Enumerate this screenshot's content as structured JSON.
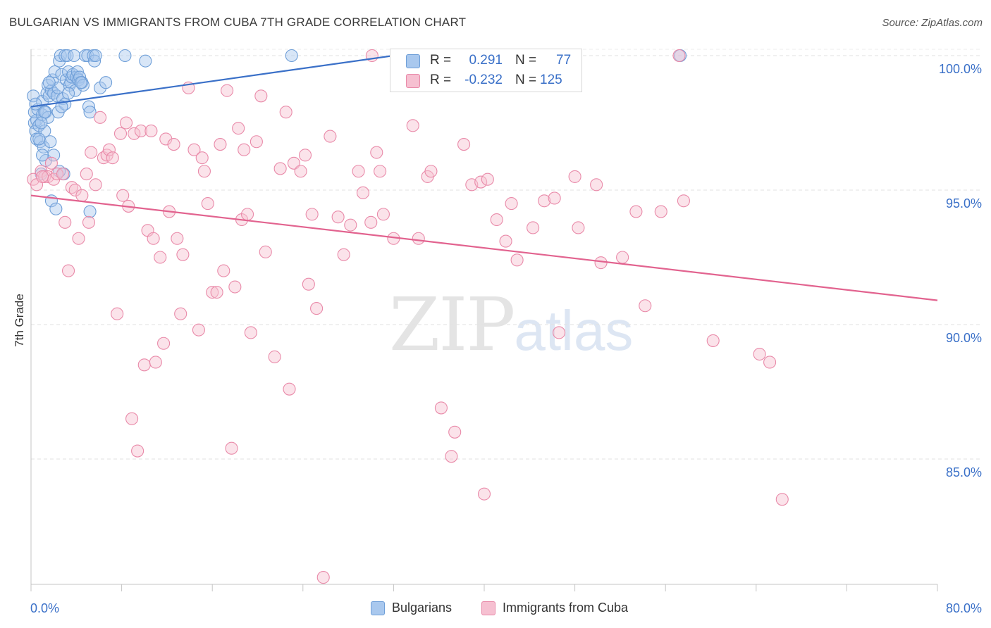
{
  "title": "BULGARIAN VS IMMIGRANTS FROM CUBA 7TH GRADE CORRELATION CHART",
  "source": "Source: ZipAtlas.com",
  "watermark": {
    "zip": "ZIP",
    "atlas": "atlas"
  },
  "legend_top": [
    {
      "r_label": "R =",
      "r_value": "0.291",
      "n_label": "N =",
      "n_value": "77",
      "color": "#a9c8ee",
      "border": "#6f9fd8"
    },
    {
      "r_label": "R =",
      "r_value": "-0.232",
      "n_label": "N =",
      "n_value": "125",
      "color": "#f6c0d1",
      "border": "#e98aa9"
    }
  ],
  "legend_bottom": [
    {
      "label": "Bulgarians",
      "color": "#a9c8ee",
      "border": "#6f9fd8"
    },
    {
      "label": "Immigrants from Cuba",
      "color": "#f6c0d1",
      "border": "#e98aa9"
    }
  ],
  "colors": {
    "blue": "#3a70c8",
    "pink": "#e2638f",
    "axis_text": "#3a70c8"
  },
  "chart_data": {
    "type": "scatter",
    "title": "BULGARIAN VS IMMIGRANTS FROM CUBA 7TH GRADE CORRELATION CHART",
    "xlabel": "",
    "ylabel": "7th Grade",
    "xlim": [
      0,
      80
    ],
    "ylim": [
      80.5,
      100.3
    ],
    "x_tick_labels": [
      {
        "v": 0,
        "t": "0.0%"
      },
      {
        "v": 80,
        "t": "80.0%"
      }
    ],
    "y_tick_labels": [
      {
        "v": 100,
        "t": "100.0%"
      },
      {
        "v": 95,
        "t": "95.0%"
      },
      {
        "v": 90,
        "t": "90.0%"
      },
      {
        "v": 85,
        "t": "85.0%"
      }
    ],
    "grid": true,
    "legend_position": "top-center",
    "series": [
      {
        "name": "Bulgarians",
        "color": "#6f9fd8",
        "fill": "rgba(169,200,238,0.45)",
        "trend": {
          "x": [
            0,
            32
          ],
          "y": [
            98.1,
            100.0
          ]
        },
        "points": [
          [
            0.2,
            98.5
          ],
          [
            0.3,
            97.9
          ],
          [
            0.3,
            97.5
          ],
          [
            0.4,
            97.2
          ],
          [
            0.5,
            96.9
          ],
          [
            0.5,
            97.6
          ],
          [
            0.6,
            98.0
          ],
          [
            0.7,
            97.4
          ],
          [
            0.8,
            96.8
          ],
          [
            0.9,
            95.6
          ],
          [
            1.0,
            97.8
          ],
          [
            1.0,
            98.3
          ],
          [
            1.1,
            96.6
          ],
          [
            1.2,
            97.2
          ],
          [
            1.3,
            96.1
          ],
          [
            1.3,
            97.9
          ],
          [
            1.4,
            98.6
          ],
          [
            1.5,
            98.9
          ],
          [
            1.5,
            97.7
          ],
          [
            1.6,
            98.5
          ],
          [
            1.7,
            96.8
          ],
          [
            1.8,
            94.6
          ],
          [
            1.8,
            98.7
          ],
          [
            1.9,
            99.1
          ],
          [
            2.0,
            98.6
          ],
          [
            2.0,
            96.3
          ],
          [
            2.1,
            99.4
          ],
          [
            2.2,
            94.3
          ],
          [
            2.3,
            98.5
          ],
          [
            2.4,
            98.8
          ],
          [
            2.4,
            97.9
          ],
          [
            2.5,
            99.8
          ],
          [
            2.6,
            100.0
          ],
          [
            2.7,
            99.3
          ],
          [
            2.8,
            98.4
          ],
          [
            2.9,
            95.6
          ],
          [
            3.0,
            100.0
          ],
          [
            3.0,
            98.2
          ],
          [
            3.1,
            99.1
          ],
          [
            3.2,
            100.0
          ],
          [
            3.3,
            99.4
          ],
          [
            3.4,
            98.9
          ],
          [
            3.5,
            99.0
          ],
          [
            3.6,
            99.2
          ],
          [
            3.7,
            99.3
          ],
          [
            3.8,
            100.0
          ],
          [
            3.9,
            98.7
          ],
          [
            4.0,
            99.2
          ],
          [
            4.1,
            99.4
          ],
          [
            4.2,
            99.1
          ],
          [
            4.3,
            99.2
          ],
          [
            4.5,
            99.0
          ],
          [
            4.6,
            98.9
          ],
          [
            4.8,
            100.0
          ],
          [
            5.0,
            100.0
          ],
          [
            5.1,
            98.1
          ],
          [
            5.2,
            97.9
          ],
          [
            5.2,
            94.2
          ],
          [
            5.5,
            100.0
          ],
          [
            5.6,
            99.8
          ],
          [
            5.7,
            100.0
          ],
          [
            6.1,
            98.8
          ],
          [
            6.6,
            99.0
          ],
          [
            8.3,
            100.0
          ],
          [
            10.1,
            99.8
          ],
          [
            23.0,
            100.0
          ],
          [
            57.3,
            100.0
          ],
          [
            1.2,
            97.9
          ],
          [
            0.7,
            96.9
          ],
          [
            1.0,
            96.3
          ],
          [
            2.5,
            95.7
          ],
          [
            1.6,
            99.0
          ],
          [
            2.7,
            98.1
          ],
          [
            0.9,
            97.5
          ],
          [
            3.3,
            98.6
          ],
          [
            4.4,
            99.0
          ],
          [
            0.4,
            98.2
          ]
        ]
      },
      {
        "name": "Immigrants from Cuba",
        "color": "#e98aa9",
        "fill": "rgba(246,192,209,0.45)",
        "trend": {
          "x": [
            0,
            80
          ],
          "y": [
            94.8,
            90.9
          ]
        },
        "points": [
          [
            0.2,
            95.4
          ],
          [
            0.5,
            95.2
          ],
          [
            0.9,
            95.7
          ],
          [
            1.2,
            95.5
          ],
          [
            1.5,
            95.5
          ],
          [
            1.8,
            96.0
          ],
          [
            2.0,
            95.4
          ],
          [
            2.3,
            95.6
          ],
          [
            2.8,
            95.6
          ],
          [
            3.0,
            93.8
          ],
          [
            3.3,
            92.0
          ],
          [
            3.6,
            95.1
          ],
          [
            3.9,
            95.0
          ],
          [
            4.2,
            93.2
          ],
          [
            4.5,
            94.8
          ],
          [
            4.9,
            95.6
          ],
          [
            5.1,
            93.8
          ],
          [
            5.3,
            96.4
          ],
          [
            5.7,
            95.2
          ],
          [
            6.1,
            97.7
          ],
          [
            6.4,
            96.2
          ],
          [
            6.7,
            96.3
          ],
          [
            6.9,
            96.5
          ],
          [
            7.2,
            96.2
          ],
          [
            7.6,
            90.4
          ],
          [
            7.9,
            97.1
          ],
          [
            8.1,
            94.8
          ],
          [
            8.4,
            97.5
          ],
          [
            8.6,
            94.4
          ],
          [
            8.9,
            86.5
          ],
          [
            9.1,
            97.1
          ],
          [
            9.4,
            85.3
          ],
          [
            9.7,
            97.2
          ],
          [
            10.0,
            88.5
          ],
          [
            10.3,
            93.5
          ],
          [
            10.6,
            97.2
          ],
          [
            10.8,
            93.2
          ],
          [
            11.0,
            88.6
          ],
          [
            11.4,
            92.5
          ],
          [
            11.7,
            89.3
          ],
          [
            11.9,
            96.9
          ],
          [
            12.2,
            94.2
          ],
          [
            12.6,
            96.7
          ],
          [
            12.9,
            93.2
          ],
          [
            13.2,
            90.4
          ],
          [
            13.4,
            92.6
          ],
          [
            13.9,
            98.8
          ],
          [
            14.4,
            96.5
          ],
          [
            14.8,
            89.8
          ],
          [
            15.1,
            96.2
          ],
          [
            15.3,
            95.7
          ],
          [
            15.6,
            94.5
          ],
          [
            16.0,
            91.2
          ],
          [
            16.4,
            91.2
          ],
          [
            16.7,
            96.7
          ],
          [
            17.0,
            92.0
          ],
          [
            17.3,
            98.7
          ],
          [
            17.7,
            85.4
          ],
          [
            18.0,
            91.4
          ],
          [
            18.3,
            97.3
          ],
          [
            18.6,
            93.9
          ],
          [
            18.8,
            96.5
          ],
          [
            19.1,
            94.1
          ],
          [
            19.4,
            89.7
          ],
          [
            19.9,
            96.8
          ],
          [
            20.3,
            98.5
          ],
          [
            20.7,
            92.7
          ],
          [
            21.5,
            88.8
          ],
          [
            22.0,
            95.8
          ],
          [
            22.5,
            97.9
          ],
          [
            22.8,
            87.6
          ],
          [
            23.2,
            96.0
          ],
          [
            23.8,
            95.7
          ],
          [
            24.2,
            96.3
          ],
          [
            24.5,
            91.5
          ],
          [
            24.8,
            94.1
          ],
          [
            25.2,
            90.6
          ],
          [
            25.8,
            80.6
          ],
          [
            26.4,
            97.0
          ],
          [
            27.1,
            94.0
          ],
          [
            27.6,
            92.6
          ],
          [
            28.2,
            93.7
          ],
          [
            28.9,
            95.7
          ],
          [
            29.3,
            94.9
          ],
          [
            30.0,
            93.8
          ],
          [
            30.5,
            96.4
          ],
          [
            30.8,
            95.7
          ],
          [
            31.1,
            94.1
          ],
          [
            32.0,
            93.2
          ],
          [
            33.7,
            97.4
          ],
          [
            34.2,
            93.2
          ],
          [
            35.0,
            95.5
          ],
          [
            35.3,
            95.7
          ],
          [
            36.2,
            86.9
          ],
          [
            37.1,
            85.1
          ],
          [
            37.4,
            86.0
          ],
          [
            38.2,
            96.7
          ],
          [
            38.9,
            95.2
          ],
          [
            39.7,
            95.3
          ],
          [
            40.0,
            83.7
          ],
          [
            40.3,
            95.4
          ],
          [
            41.1,
            93.9
          ],
          [
            41.9,
            93.1
          ],
          [
            42.4,
            94.5
          ],
          [
            42.9,
            92.4
          ],
          [
            44.3,
            93.6
          ],
          [
            45.3,
            94.6
          ],
          [
            46.2,
            94.7
          ],
          [
            46.6,
            89.7
          ],
          [
            48.0,
            95.5
          ],
          [
            48.3,
            93.6
          ],
          [
            49.9,
            95.2
          ],
          [
            50.3,
            92.3
          ],
          [
            52.2,
            92.5
          ],
          [
            53.4,
            94.2
          ],
          [
            54.2,
            90.7
          ],
          [
            55.6,
            94.2
          ],
          [
            57.6,
            94.6
          ],
          [
            60.2,
            89.4
          ],
          [
            64.3,
            88.9
          ],
          [
            65.2,
            88.6
          ],
          [
            66.3,
            83.5
          ],
          [
            57.2,
            100.0
          ],
          [
            30.1,
            100.0
          ],
          [
            1.0,
            95.5
          ]
        ]
      }
    ]
  }
}
